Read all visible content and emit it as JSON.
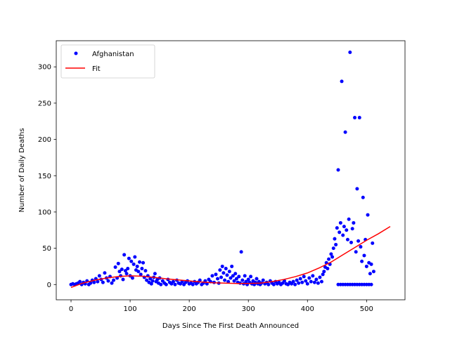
{
  "chart_data": {
    "type": "scatter",
    "title": "",
    "xlabel": "Days Since The First Death Announced",
    "ylabel": "Number of Daily Deaths",
    "xlim": [
      -25,
      565
    ],
    "ylim": [
      -21,
      336
    ],
    "xticks": [
      0,
      100,
      200,
      300,
      400,
      500
    ],
    "yticks": [
      0,
      50,
      100,
      150,
      200,
      250,
      300
    ],
    "grid": false,
    "legend_position": "top-left",
    "series": [
      {
        "name": "Afghanistan",
        "kind": "scatter",
        "color": "#0000ff",
        "points": [
          [
            0,
            0
          ],
          [
            3,
            1
          ],
          [
            6,
            0
          ],
          [
            9,
            1
          ],
          [
            12,
            2
          ],
          [
            15,
            4
          ],
          [
            18,
            0
          ],
          [
            21,
            3
          ],
          [
            24,
            1
          ],
          [
            27,
            5
          ],
          [
            30,
            0
          ],
          [
            33,
            2
          ],
          [
            36,
            6
          ],
          [
            39,
            3
          ],
          [
            42,
            8
          ],
          [
            45,
            4
          ],
          [
            48,
            12
          ],
          [
            51,
            7
          ],
          [
            54,
            3
          ],
          [
            57,
            16
          ],
          [
            60,
            9
          ],
          [
            63,
            5
          ],
          [
            66,
            11
          ],
          [
            69,
            2
          ],
          [
            72,
            6
          ],
          [
            75,
            24
          ],
          [
            78,
            9
          ],
          [
            80,
            29
          ],
          [
            82,
            18
          ],
          [
            84,
            12
          ],
          [
            86,
            21
          ],
          [
            88,
            7
          ],
          [
            90,
            41
          ],
          [
            92,
            19
          ],
          [
            94,
            15
          ],
          [
            96,
            22
          ],
          [
            98,
            36
          ],
          [
            100,
            12
          ],
          [
            102,
            32
          ],
          [
            104,
            9
          ],
          [
            106,
            28
          ],
          [
            108,
            38
          ],
          [
            110,
            20
          ],
          [
            112,
            25
          ],
          [
            114,
            18
          ],
          [
            116,
            31
          ],
          [
            118,
            14
          ],
          [
            120,
            22
          ],
          [
            122,
            30
          ],
          [
            124,
            10
          ],
          [
            126,
            19
          ],
          [
            128,
            6
          ],
          [
            130,
            12
          ],
          [
            132,
            3
          ],
          [
            134,
            8
          ],
          [
            136,
            1
          ],
          [
            138,
            5
          ],
          [
            140,
            10
          ],
          [
            142,
            15
          ],
          [
            144,
            4
          ],
          [
            146,
            7
          ],
          [
            148,
            2
          ],
          [
            150,
            9
          ],
          [
            152,
            0
          ],
          [
            155,
            5
          ],
          [
            158,
            2
          ],
          [
            161,
            0
          ],
          [
            164,
            7
          ],
          [
            167,
            3
          ],
          [
            170,
            1
          ],
          [
            173,
            4
          ],
          [
            176,
            0
          ],
          [
            179,
            6
          ],
          [
            182,
            2
          ],
          [
            185,
            1
          ],
          [
            188,
            4
          ],
          [
            191,
            0
          ],
          [
            194,
            3
          ],
          [
            197,
            5
          ],
          [
            200,
            1
          ],
          [
            203,
            2
          ],
          [
            206,
            0
          ],
          [
            209,
            4
          ],
          [
            212,
            1
          ],
          [
            215,
            3
          ],
          [
            218,
            6
          ],
          [
            221,
            0
          ],
          [
            224,
            2
          ],
          [
            227,
            5
          ],
          [
            230,
            1
          ],
          [
            233,
            7
          ],
          [
            236,
            4
          ],
          [
            239,
            12
          ],
          [
            242,
            3
          ],
          [
            245,
            14
          ],
          [
            248,
            8
          ],
          [
            250,
            2
          ],
          [
            252,
            20
          ],
          [
            254,
            10
          ],
          [
            256,
            25
          ],
          [
            258,
            16
          ],
          [
            260,
            6
          ],
          [
            262,
            22
          ],
          [
            264,
            13
          ],
          [
            266,
            4
          ],
          [
            268,
            18
          ],
          [
            270,
            9
          ],
          [
            272,
            25
          ],
          [
            274,
            12
          ],
          [
            276,
            5
          ],
          [
            278,
            15
          ],
          [
            280,
            8
          ],
          [
            282,
            3
          ],
          [
            284,
            11
          ],
          [
            286,
            2
          ],
          [
            288,
            45
          ],
          [
            290,
            6
          ],
          [
            292,
            1
          ],
          [
            294,
            12
          ],
          [
            296,
            4
          ],
          [
            298,
            0
          ],
          [
            300,
            7
          ],
          [
            302,
            3
          ],
          [
            304,
            11
          ],
          [
            306,
            1
          ],
          [
            308,
            5
          ],
          [
            310,
            0
          ],
          [
            312,
            3
          ],
          [
            314,
            8
          ],
          [
            316,
            1
          ],
          [
            318,
            4
          ],
          [
            320,
            0
          ],
          [
            322,
            2
          ],
          [
            325,
            6
          ],
          [
            328,
            1
          ],
          [
            331,
            3
          ],
          [
            334,
            0
          ],
          [
            337,
            5
          ],
          [
            340,
            2
          ],
          [
            343,
            0
          ],
          [
            346,
            4
          ],
          [
            349,
            1
          ],
          [
            352,
            3
          ],
          [
            355,
            0
          ],
          [
            358,
            2
          ],
          [
            361,
            5
          ],
          [
            364,
            1
          ],
          [
            367,
            0
          ],
          [
            370,
            3
          ],
          [
            373,
            1
          ],
          [
            376,
            4
          ],
          [
            379,
            0
          ],
          [
            382,
            6
          ],
          [
            385,
            2
          ],
          [
            388,
            8
          ],
          [
            391,
            3
          ],
          [
            394,
            11
          ],
          [
            397,
            5
          ],
          [
            400,
            1
          ],
          [
            403,
            9
          ],
          [
            406,
            4
          ],
          [
            409,
            12
          ],
          [
            412,
            3
          ],
          [
            415,
            7
          ],
          [
            418,
            2
          ],
          [
            421,
            10
          ],
          [
            424,
            4
          ],
          [
            426,
            14
          ],
          [
            428,
            18
          ],
          [
            430,
            24
          ],
          [
            432,
            30
          ],
          [
            434,
            22
          ],
          [
            436,
            35
          ],
          [
            438,
            28
          ],
          [
            440,
            42
          ],
          [
            442,
            38
          ],
          [
            444,
            50
          ],
          [
            446,
            63
          ],
          [
            448,
            55
          ],
          [
            450,
            78
          ],
          [
            452,
            158
          ],
          [
            454,
            72
          ],
          [
            456,
            85
          ],
          [
            458,
            280
          ],
          [
            460,
            68
          ],
          [
            462,
            80
          ],
          [
            464,
            210
          ],
          [
            466,
            75
          ],
          [
            468,
            62
          ],
          [
            470,
            90
          ],
          [
            472,
            320
          ],
          [
            474,
            58
          ],
          [
            476,
            77
          ],
          [
            478,
            85
          ],
          [
            480,
            230
          ],
          [
            482,
            45
          ],
          [
            484,
            132
          ],
          [
            486,
            60
          ],
          [
            488,
            230
          ],
          [
            490,
            52
          ],
          [
            492,
            32
          ],
          [
            494,
            120
          ],
          [
            496,
            40
          ],
          [
            498,
            62
          ],
          [
            500,
            25
          ],
          [
            502,
            96
          ],
          [
            504,
            30
          ],
          [
            506,
            15
          ],
          [
            508,
            28
          ],
          [
            510,
            57
          ],
          [
            512,
            18
          ],
          [
            452,
            0
          ],
          [
            456,
            0
          ],
          [
            460,
            0
          ],
          [
            464,
            0
          ],
          [
            468,
            0
          ],
          [
            472,
            0
          ],
          [
            476,
            0
          ],
          [
            480,
            0
          ],
          [
            484,
            0
          ],
          [
            488,
            0
          ],
          [
            492,
            0
          ],
          [
            496,
            0
          ],
          [
            500,
            0
          ],
          [
            504,
            0
          ],
          [
            508,
            0
          ]
        ]
      },
      {
        "name": "Fit",
        "kind": "line",
        "color": "#ff0000",
        "points": [
          [
            0,
            -4
          ],
          [
            20,
            2
          ],
          [
            40,
            6
          ],
          [
            60,
            9
          ],
          [
            80,
            11
          ],
          [
            100,
            12
          ],
          [
            120,
            11.5
          ],
          [
            140,
            10
          ],
          [
            160,
            8
          ],
          [
            180,
            6.5
          ],
          [
            200,
            5
          ],
          [
            220,
            3.5
          ],
          [
            240,
            2.5
          ],
          [
            260,
            2
          ],
          [
            280,
            1.5
          ],
          [
            300,
            1.5
          ],
          [
            320,
            2
          ],
          [
            340,
            4
          ],
          [
            360,
            7
          ],
          [
            380,
            11
          ],
          [
            400,
            16
          ],
          [
            420,
            23
          ],
          [
            440,
            31
          ],
          [
            460,
            41
          ],
          [
            480,
            51
          ],
          [
            500,
            61
          ],
          [
            520,
            70
          ],
          [
            540,
            80
          ]
        ]
      }
    ]
  }
}
